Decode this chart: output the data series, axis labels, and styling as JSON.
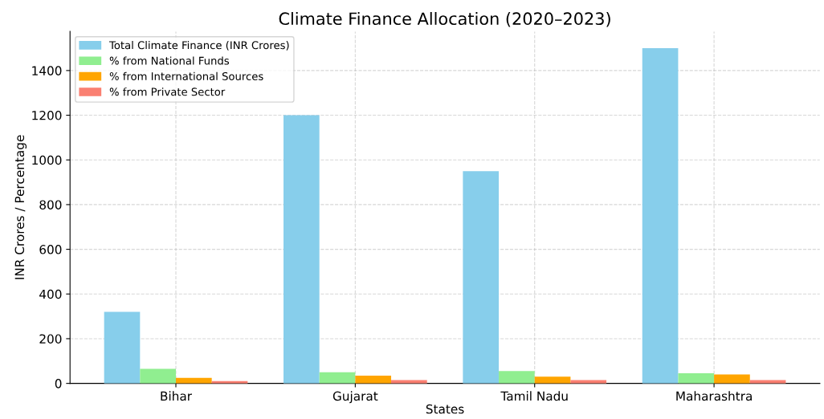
{
  "chart_data": {
    "type": "bar",
    "title": "Climate Finance Allocation (2020–2023)",
    "xlabel": "States",
    "ylabel": "INR Crores / Percentage",
    "categories": [
      "Bihar",
      "Gujarat",
      "Tamil Nadu",
      "Maharashtra"
    ],
    "series": [
      {
        "name": "Total Climate Finance (INR Crores)",
        "color": "#87ceeb",
        "values": [
          320,
          1200,
          950,
          1500
        ]
      },
      {
        "name": "% from National Funds",
        "color": "#90ee90",
        "values": [
          65,
          50,
          55,
          45
        ]
      },
      {
        "name": "% from International Sources",
        "color": "#ffa500",
        "values": [
          25,
          35,
          30,
          40
        ]
      },
      {
        "name": "% from Private Sector",
        "color": "#fa8072",
        "values": [
          10,
          15,
          15,
          15
        ]
      }
    ],
    "ylim": [
      0,
      1575
    ],
    "yticks": [
      0,
      200,
      400,
      600,
      800,
      1000,
      1200,
      1400
    ],
    "grid": true,
    "legend": "top left"
  }
}
